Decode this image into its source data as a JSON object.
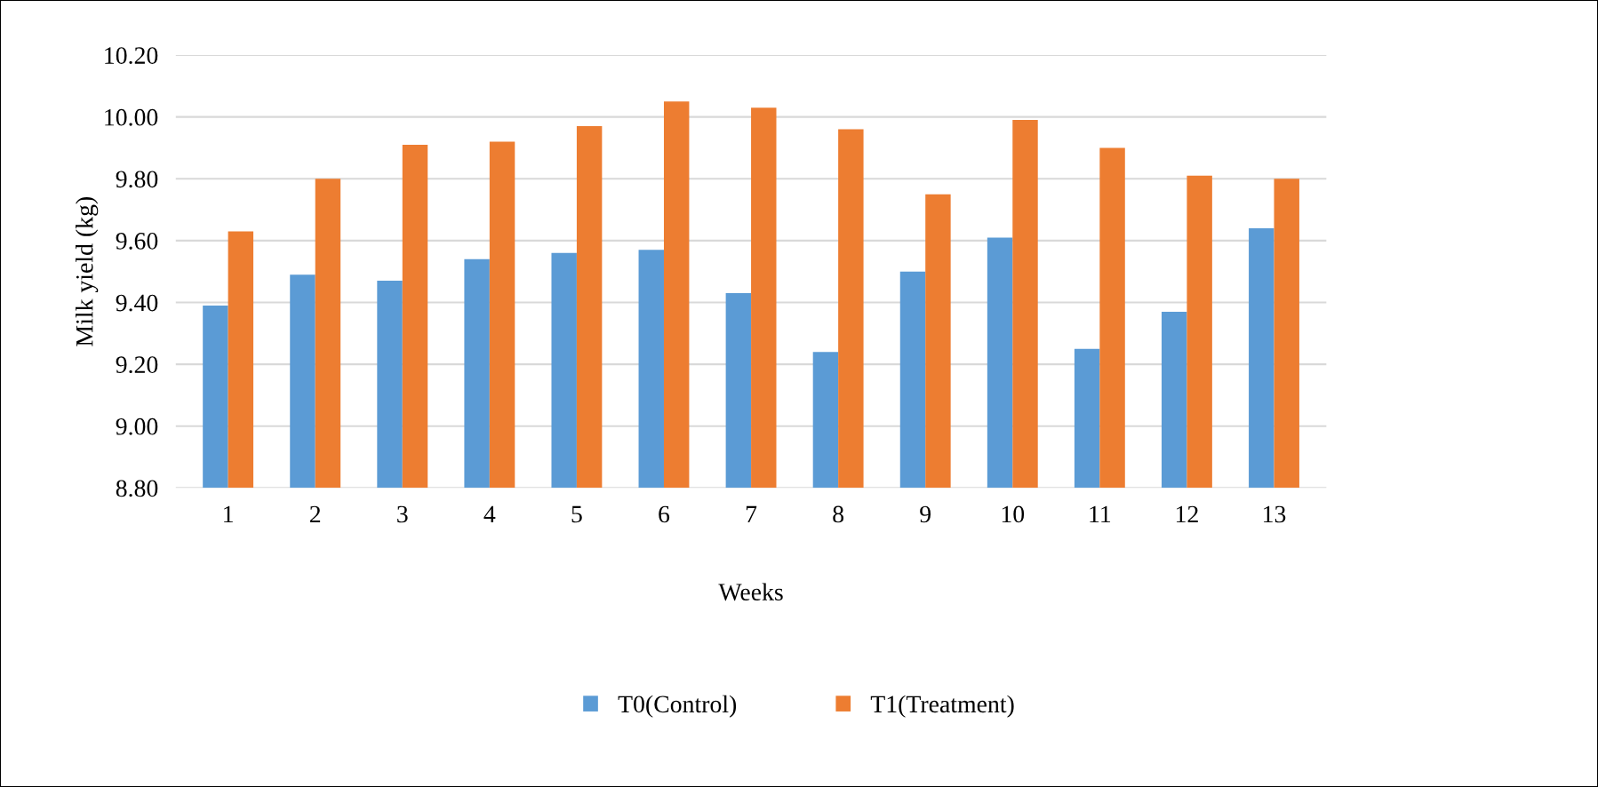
{
  "chart_data": {
    "type": "bar",
    "xlabel": "Weeks",
    "ylabel": "Milk yield (kg)",
    "categories": [
      "1",
      "2",
      "3",
      "4",
      "5",
      "6",
      "7",
      "8",
      "9",
      "10",
      "11",
      "12",
      "13"
    ],
    "series": [
      {
        "name": "T0(Control)",
        "color": "#5b9bd5",
        "values": [
          9.39,
          9.49,
          9.47,
          9.54,
          9.56,
          9.57,
          9.43,
          9.24,
          9.5,
          9.61,
          9.25,
          9.37,
          9.64
        ]
      },
      {
        "name": "T1(Treatment)",
        "color": "#ed7d31",
        "values": [
          9.63,
          9.8,
          9.91,
          9.92,
          9.97,
          10.05,
          10.03,
          9.96,
          9.75,
          9.99,
          9.9,
          9.81,
          9.8
        ]
      }
    ],
    "ylim": [
      8.8,
      10.2
    ],
    "yticks": [
      {
        "value": 8.8,
        "label": "8.80"
      },
      {
        "value": 9.0,
        "label": "9.00"
      },
      {
        "value": 9.2,
        "label": "9.20"
      },
      {
        "value": 9.4,
        "label": "9.40"
      },
      {
        "value": 9.6,
        "label": "9.60"
      },
      {
        "value": 9.8,
        "label": "9.80"
      },
      {
        "value": 10.0,
        "label": "10.00"
      },
      {
        "value": 10.2,
        "label": "10.20"
      }
    ],
    "grid": "y",
    "legend": "bottom"
  }
}
